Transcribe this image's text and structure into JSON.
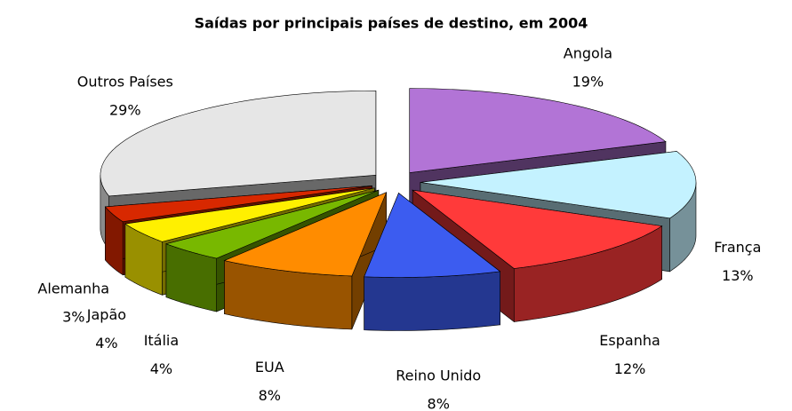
{
  "chart_data": {
    "type": "pie3d",
    "title": "Saídas por principais países de destino, em 2004",
    "categories": [
      "Angola",
      "França",
      "Espanha",
      "Reino Unido",
      "EUA",
      "Itália",
      "Japão",
      "Alemanha",
      "Outros Países"
    ],
    "values": [
      19,
      13,
      12,
      8,
      8,
      4,
      4,
      3,
      29
    ],
    "value_labels": [
      "19%",
      "13%",
      "12%",
      "8%",
      "8%",
      "4%",
      "4%",
      "3%",
      "29%"
    ],
    "colors": [
      "#b274d6",
      "#c4f2ff",
      "#ff3a3a",
      "#3c5cf0",
      "#ff8c00",
      "#78b800",
      "#fff000",
      "#d82800",
      "#e6e6e6"
    ]
  }
}
